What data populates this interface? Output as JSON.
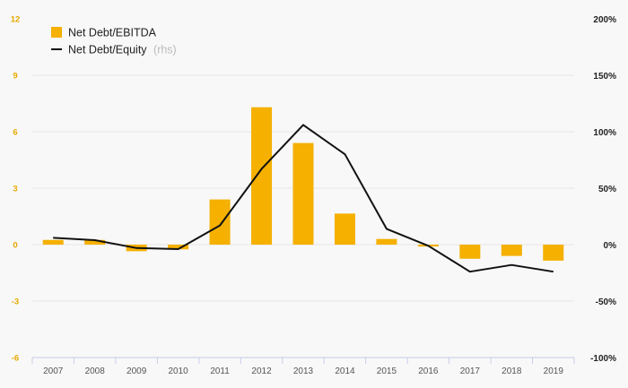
{
  "chart_data": {
    "type": "bar",
    "categories": [
      "2007",
      "2008",
      "2009",
      "2010",
      "2011",
      "2012",
      "2013",
      "2014",
      "2015",
      "2016",
      "2017",
      "2018",
      "2019"
    ],
    "series": [
      {
        "name": "Net Debt/EBITDA",
        "kind": "bar",
        "axis": "left",
        "values": [
          0.25,
          0.25,
          -0.35,
          -0.25,
          2.4,
          7.3,
          5.4,
          1.65,
          0.3,
          -0.1,
          -0.75,
          -0.6,
          -0.85
        ]
      },
      {
        "name": "Net Debt/Equity",
        "kind": "line",
        "axis": "right",
        "values": [
          6,
          4,
          -3,
          -4,
          17,
          67,
          106,
          80,
          14,
          -1,
          -24,
          -18,
          -24
        ]
      }
    ],
    "legend_suffix": "(rhs)",
    "ylim": [
      -6,
      12
    ],
    "y_ticks": [
      12,
      9,
      6,
      3,
      0,
      -3,
      -6
    ],
    "y2lim": [
      -100,
      200
    ],
    "y2_ticks": [
      "200%",
      "150%",
      "100%",
      "50%",
      "0%",
      "-50%",
      "-100%"
    ],
    "y2_tick_values": [
      200,
      150,
      100,
      50,
      0,
      -50,
      -100
    ],
    "grid": true,
    "legend_position": "top-left",
    "colors": {
      "bar": "#f5b000",
      "line": "#111111",
      "left_tick": "#e8a900",
      "right_tick": "#222222",
      "axis_label": "#555555",
      "grid": "#e6e6e6",
      "rhs_note": "#bbbbbb"
    }
  }
}
